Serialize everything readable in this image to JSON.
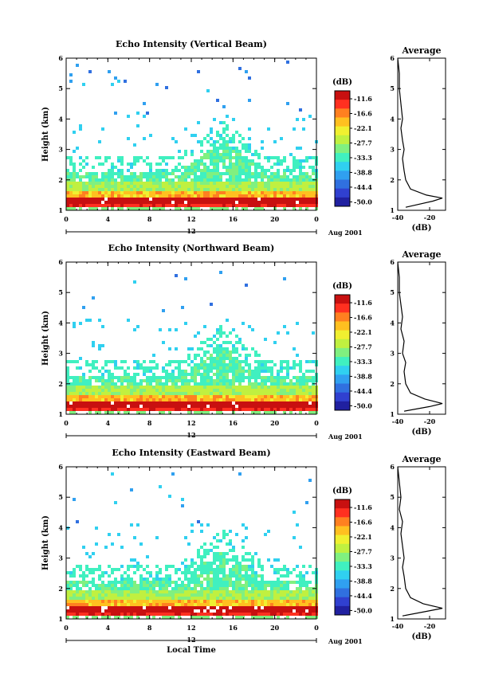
{
  "chart_data": [
    {
      "type": "heatmap",
      "title": "Echo Intensity (Vertical Beam)",
      "ylabel": "Height (km)",
      "xlim": [
        0,
        24
      ],
      "ylim": [
        1,
        6
      ],
      "x_ticks": [
        "0",
        "4",
        "8",
        "12",
        "16",
        "20",
        "0"
      ],
      "y_ticks": [
        "1",
        "2",
        "3",
        "4",
        "5",
        "6"
      ],
      "date_ticks": [
        "12"
      ],
      "date_suffix": "Aug 2001",
      "colorbar": {
        "label": "(dB)",
        "ticks": [
          "-11.6",
          "-16.6",
          "-22.1",
          "-27.7",
          "-33.3",
          "-38.8",
          "-44.4",
          "-50.0"
        ]
      },
      "layers": [
        {
          "height_km": 1.2,
          "value_db": -16
        },
        {
          "height_km": 1.4,
          "value_db": -12
        },
        {
          "height_km": 1.7,
          "value_db": -28
        },
        {
          "height_km": 2.1,
          "value_db": -34
        },
        {
          "height_km": 2.6,
          "value_db": -36
        }
      ],
      "average_profile": {
        "title": "Average",
        "xlabel": "(dB)",
        "x_ticks": [
          "-40",
          "-20"
        ],
        "xlim": [
          -40,
          -10
        ],
        "y_ticks": [
          "1",
          "2",
          "3",
          "4",
          "5",
          "6"
        ],
        "ylim": [
          1,
          6
        ],
        "height_km": [
          1.1,
          1.3,
          1.4,
          1.5,
          1.7,
          2.0,
          2.3,
          2.7,
          3.0,
          3.3,
          3.7,
          4.0,
          4.5,
          5.0,
          5.5,
          6.0
        ],
        "value_db": [
          -35,
          -18,
          -12,
          -22,
          -32,
          -35,
          -36,
          -37,
          -36,
          -37,
          -38,
          -37,
          -38,
          -39,
          -39,
          -40
        ]
      }
    },
    {
      "type": "heatmap",
      "title": "Echo Intensity (Northward Beam)",
      "ylabel": "Height (km)",
      "xlim": [
        0,
        24
      ],
      "ylim": [
        1,
        6
      ],
      "x_ticks": [
        "0",
        "4",
        "8",
        "12",
        "16",
        "20",
        "0"
      ],
      "y_ticks": [
        "1",
        "2",
        "3",
        "4",
        "5",
        "6"
      ],
      "date_ticks": [
        "12"
      ],
      "date_suffix": "Aug 2001",
      "colorbar": {
        "label": "(dB)",
        "ticks": [
          "-11.6",
          "-16.6",
          "-22.1",
          "-27.7",
          "-33.3",
          "-38.8",
          "-44.4",
          "-50.0"
        ]
      },
      "layers": [
        {
          "height_km": 1.2,
          "value_db": -18
        },
        {
          "height_km": 1.35,
          "value_db": -12
        },
        {
          "height_km": 1.6,
          "value_db": -27
        },
        {
          "height_km": 2.0,
          "value_db": -34
        },
        {
          "height_km": 2.7,
          "value_db": -37
        }
      ],
      "average_profile": {
        "title": "Average",
        "xlabel": "(dB)",
        "x_ticks": [
          "-40",
          "-20"
        ],
        "xlim": [
          -40,
          -10
        ],
        "y_ticks": [
          "1",
          "2",
          "3",
          "4",
          "5",
          "6"
        ],
        "ylim": [
          1,
          6
        ],
        "height_km": [
          1.1,
          1.25,
          1.35,
          1.5,
          1.7,
          2.0,
          2.4,
          2.7,
          3.0,
          3.4,
          3.8,
          4.2,
          4.6,
          5.0,
          5.5,
          6.0
        ],
        "value_db": [
          -36,
          -20,
          -12,
          -23,
          -32,
          -35,
          -36,
          -35,
          -37,
          -36,
          -38,
          -37,
          -38,
          -39,
          -39,
          -40
        ]
      }
    },
    {
      "type": "heatmap",
      "title": "Echo Intensity (Eastward Beam)",
      "ylabel": "Height (km)",
      "xlabel": "Local Time",
      "xlim": [
        0,
        24
      ],
      "ylim": [
        1,
        6
      ],
      "x_ticks": [
        "0",
        "4",
        "8",
        "12",
        "16",
        "20",
        "0"
      ],
      "y_ticks": [
        "1",
        "2",
        "3",
        "4",
        "5",
        "6"
      ],
      "date_ticks": [
        "12"
      ],
      "date_suffix": "Aug 2001",
      "colorbar": {
        "label": "(dB)",
        "ticks": [
          "-11.6",
          "-16.6",
          "-22.1",
          "-27.7",
          "-33.3",
          "-38.8",
          "-44.4",
          "-50.0"
        ]
      },
      "layers": [
        {
          "height_km": 1.2,
          "value_db": -20
        },
        {
          "height_km": 1.35,
          "value_db": -12
        },
        {
          "height_km": 1.6,
          "value_db": -26
        },
        {
          "height_km": 2.0,
          "value_db": -34
        },
        {
          "height_km": 2.7,
          "value_db": -37
        }
      ],
      "average_profile": {
        "title": "Average",
        "xlabel": "(dB)",
        "x_ticks": [
          "-40",
          "-20"
        ],
        "xlim": [
          -40,
          -10
        ],
        "y_ticks": [
          "1",
          "2",
          "3",
          "4",
          "5",
          "6"
        ],
        "ylim": [
          1,
          6
        ],
        "height_km": [
          1.1,
          1.25,
          1.35,
          1.5,
          1.7,
          2.0,
          2.4,
          2.7,
          3.0,
          3.4,
          3.8,
          4.2,
          4.6,
          5.0,
          5.5,
          6.0
        ],
        "value_db": [
          -37,
          -22,
          -12,
          -24,
          -32,
          -35,
          -36,
          -37,
          -36,
          -37,
          -38,
          -37,
          -39,
          -38,
          -39,
          -40
        ]
      }
    }
  ],
  "colors": {
    "scale": [
      "#c81010",
      "#ff3020",
      "#ff8020",
      "#ffc020",
      "#f0f030",
      "#c0f040",
      "#80f080",
      "#40f0c0",
      "#30d0f0",
      "#30a0f0",
      "#3070e0",
      "#3040d0",
      "#2020a0"
    ]
  }
}
